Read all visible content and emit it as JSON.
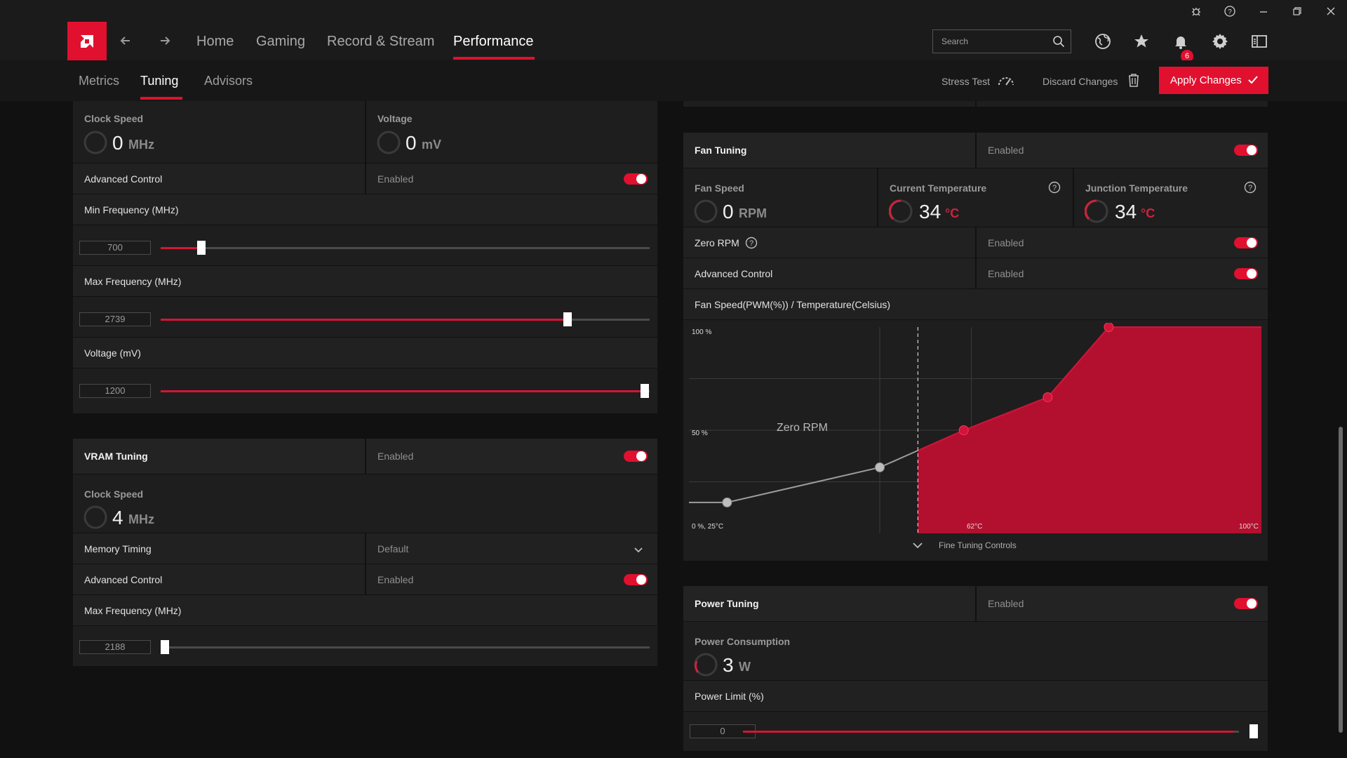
{
  "titlebar": {
    "icons": [
      "bug-icon",
      "help-icon",
      "minimize-icon",
      "restore-icon",
      "close-icon"
    ]
  },
  "header": {
    "nav": [
      {
        "label": "Home"
      },
      {
        "label": "Gaming"
      },
      {
        "label": "Record & Stream"
      },
      {
        "label": "Performance"
      }
    ],
    "active_nav": "Performance",
    "search": {
      "placeholder": "Search"
    },
    "notifications_count": "6",
    "icons": [
      "globe-icon",
      "star-icon",
      "bell-icon",
      "gear-icon",
      "sidebar-panel-icon"
    ]
  },
  "subnav": {
    "tabs": [
      {
        "label": "Metrics"
      },
      {
        "label": "Tuning"
      },
      {
        "label": "Advisors"
      }
    ],
    "active_tab": "Tuning",
    "stress_test": "Stress Test",
    "discard": "Discard Changes",
    "apply": "Apply Changes"
  },
  "gpu_tuning": {
    "clock_speed": {
      "label": "Clock Speed",
      "value": "0",
      "unit": "MHz"
    },
    "voltage": {
      "label": "Voltage",
      "value": "0",
      "unit": "mV"
    },
    "advanced_control": {
      "label": "Advanced Control",
      "state": "Enabled",
      "on": true
    },
    "min_freq": {
      "label": "Min Frequency (MHz)",
      "value": "700",
      "level_pct": 8
    },
    "max_freq": {
      "label": "Max Frequency (MHz)",
      "value": "2739",
      "level_pct": 84
    },
    "voltage_mv": {
      "label": "Voltage (mV)",
      "value": "1200",
      "level_pct": 100
    }
  },
  "vram_tuning": {
    "title": "VRAM Tuning",
    "state": "Enabled",
    "on": true,
    "clock_speed": {
      "label": "Clock Speed",
      "value": "4",
      "unit": "MHz"
    },
    "memory_timing": {
      "label": "Memory Timing",
      "value": "Default"
    },
    "advanced_control": {
      "label": "Advanced Control",
      "state": "Enabled",
      "on": true
    },
    "max_freq": {
      "label": "Max Frequency (MHz)",
      "value": "2188",
      "level_pct": 0
    }
  },
  "fan_tuning": {
    "title": "Fan Tuning",
    "state": "Enabled",
    "on": true,
    "fan_speed": {
      "label": "Fan Speed",
      "value": "0",
      "unit": "RPM"
    },
    "current_temp": {
      "label": "Current Temperature",
      "value": "34",
      "unit": "°C"
    },
    "junction_temp": {
      "label": "Junction Temperature",
      "value": "34",
      "unit": "°C"
    },
    "zero_rpm": {
      "label": "Zero RPM",
      "state": "Enabled",
      "on": true
    },
    "advanced_control": {
      "label": "Advanced Control",
      "state": "Enabled",
      "on": true
    },
    "chart_title": "Fan Speed(PWM(%)) / Temperature(Celsius)",
    "fine_tuning": "Fine Tuning Controls"
  },
  "power_tuning": {
    "title": "Power Tuning",
    "state": "Enabled",
    "on": true,
    "consumption": {
      "label": "Power Consumption",
      "value": "3",
      "unit": "W"
    },
    "limit": {
      "label": "Power Limit (%)",
      "value": "0",
      "level_pct": 100
    }
  },
  "chart_data": {
    "type": "line",
    "title": "Fan Speed(PWM(%)) / Temperature(Celsius)",
    "x_tick_labels": [
      "0 %, 25°C",
      "62°C",
      "100°C"
    ],
    "y_tick_labels": [
      "100 %",
      "50 %"
    ],
    "xlim": [
      25,
      100
    ],
    "ylim": [
      0,
      100
    ],
    "zero_rpm_label": "Zero RPM",
    "zero_rpm_threshold_c": 55,
    "points": [
      {
        "temp": 30,
        "pwm": 15,
        "zone": "zero_rpm"
      },
      {
        "temp": 50,
        "pwm": 32,
        "zone": "zero_rpm"
      },
      {
        "temp": 61,
        "pwm": 50,
        "zone": "active"
      },
      {
        "temp": 72,
        "pwm": 66,
        "zone": "active"
      },
      {
        "temp": 80,
        "pwm": 100,
        "zone": "active"
      }
    ],
    "colors": {
      "curve": "#d1143a",
      "fill": "#b3102f",
      "inactive": "#9c9c9c"
    }
  },
  "colors": {
    "accent": "#e1102f",
    "panel": "#1e1e1e",
    "background": "#111111"
  }
}
